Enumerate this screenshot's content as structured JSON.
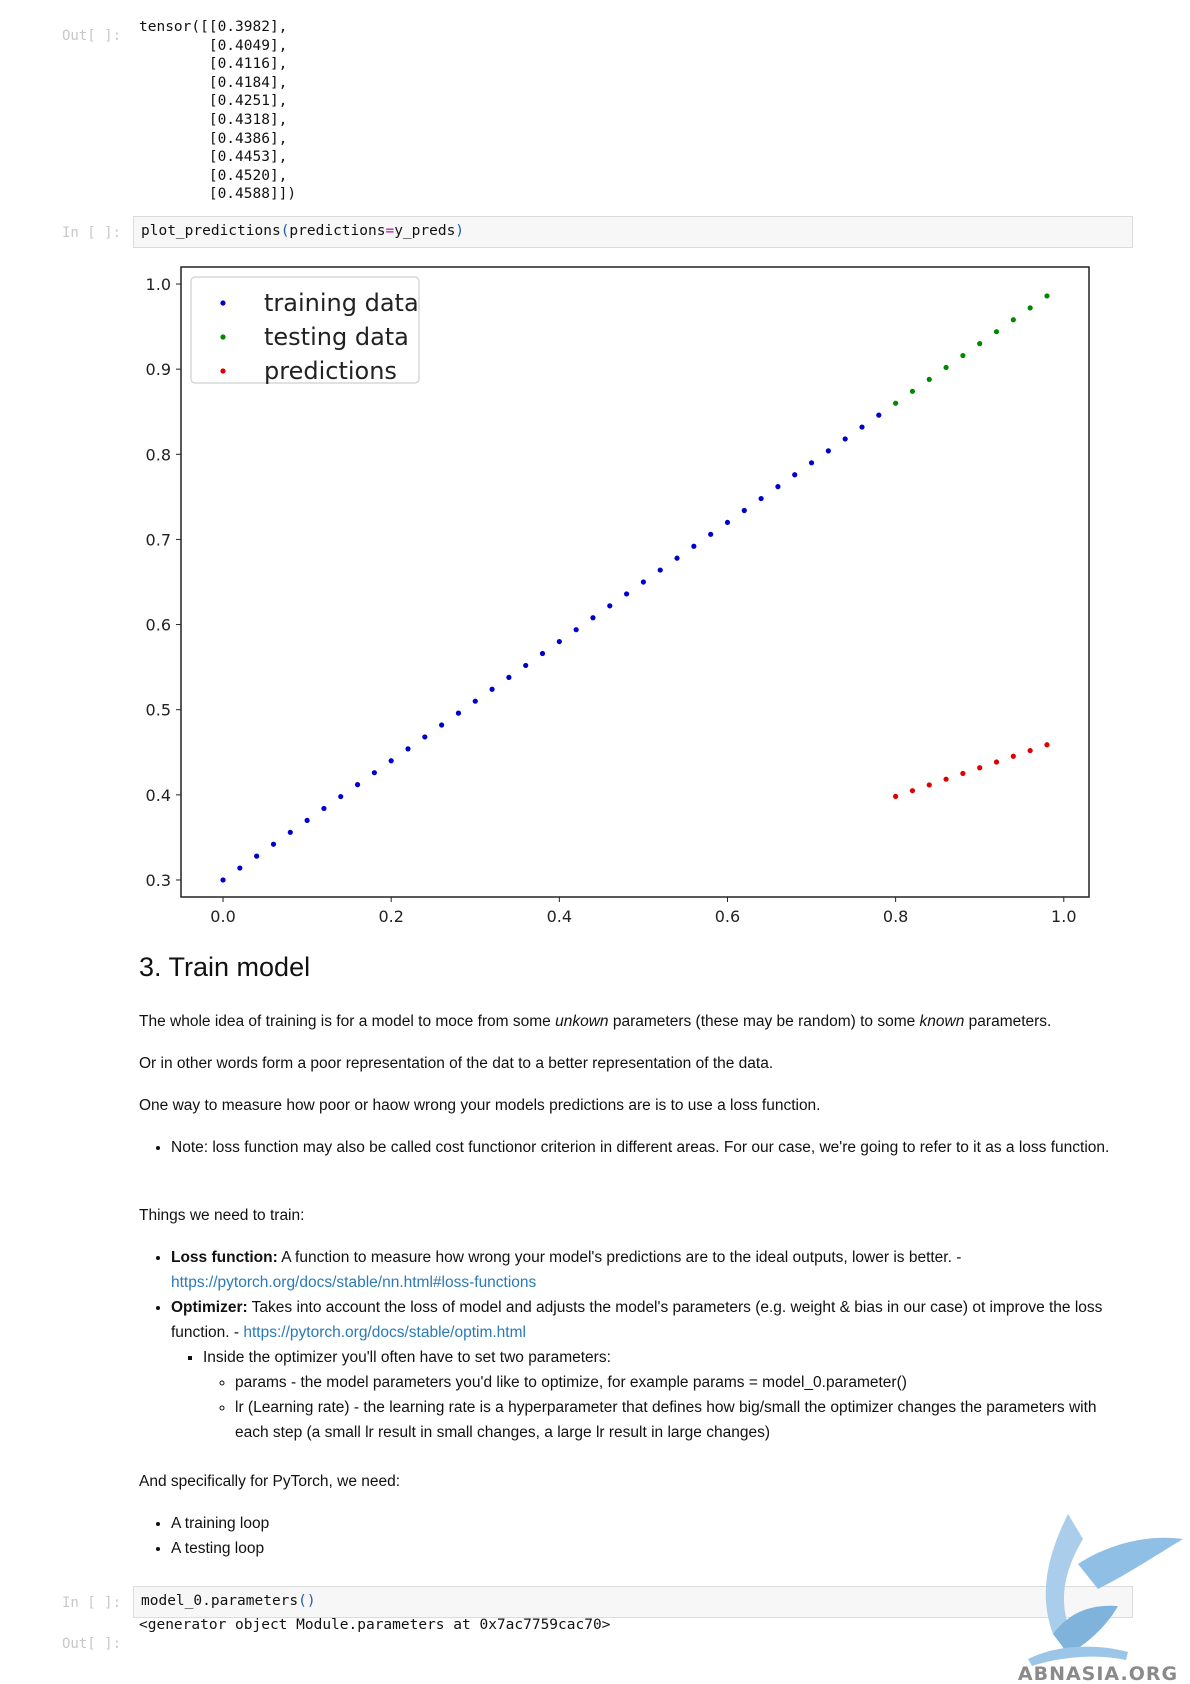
{
  "cells": {
    "out1_prompt": "Out[ ]:",
    "out1_lines": [
      "tensor([[0.3982],",
      "        [0.4049],",
      "        [0.4116],",
      "        [0.4184],",
      "        [0.4251],",
      "        [0.4318],",
      "        [0.4386],",
      "        [0.4453],",
      "        [0.4520],",
      "        [0.4588]])"
    ],
    "in1_prompt": "In [ ]:",
    "in1_code": {
      "fn": "plot_predictions",
      "open": "(",
      "arg": "predictions",
      "eq": "=",
      "val": "y_preds",
      "close": ")"
    },
    "in2_prompt": "In [ ]:",
    "in2_code": {
      "fn": "model_0.parameters",
      "parens": "()"
    },
    "out2_prompt": "Out[ ]:",
    "out2_text": "<generator object Module.parameters at 0x7ac7759cac70>"
  },
  "chart_data": {
    "type": "scatter",
    "xlim": [
      -0.05,
      1.03
    ],
    "ylim": [
      0.28,
      1.02
    ],
    "xticks": [
      "0.0",
      "0.2",
      "0.4",
      "0.6",
      "0.8",
      "1.0"
    ],
    "yticks": [
      "0.3",
      "0.4",
      "0.5",
      "0.6",
      "0.7",
      "0.8",
      "0.9",
      "1.0"
    ],
    "legend_position": "top-left",
    "grid": false,
    "series": [
      {
        "name": "training data",
        "color": "#0000cc",
        "x": [
          0.0,
          0.02,
          0.04,
          0.06,
          0.08,
          0.1,
          0.12,
          0.14,
          0.16,
          0.18,
          0.2,
          0.22,
          0.24,
          0.26,
          0.28,
          0.3,
          0.32,
          0.34,
          0.36,
          0.38,
          0.4,
          0.42,
          0.44,
          0.46,
          0.48,
          0.5,
          0.52,
          0.54,
          0.56,
          0.58,
          0.6,
          0.62,
          0.64,
          0.66,
          0.68,
          0.7,
          0.72,
          0.74,
          0.76,
          0.78
        ],
        "y": [
          0.3,
          0.314,
          0.328,
          0.342,
          0.356,
          0.37,
          0.384,
          0.398,
          0.412,
          0.426,
          0.44,
          0.454,
          0.468,
          0.482,
          0.496,
          0.51,
          0.524,
          0.538,
          0.552,
          0.566,
          0.58,
          0.594,
          0.608,
          0.622,
          0.636,
          0.65,
          0.664,
          0.678,
          0.692,
          0.706,
          0.72,
          0.734,
          0.748,
          0.762,
          0.776,
          0.79,
          0.804,
          0.818,
          0.832,
          0.846
        ]
      },
      {
        "name": "testing data",
        "color": "#008800",
        "x": [
          0.8,
          0.82,
          0.84,
          0.86,
          0.88,
          0.9,
          0.92,
          0.94,
          0.96,
          0.98
        ],
        "y": [
          0.86,
          0.874,
          0.888,
          0.902,
          0.916,
          0.93,
          0.944,
          0.958,
          0.972,
          0.986
        ]
      },
      {
        "name": "predictions",
        "color": "#dd0000",
        "x": [
          0.8,
          0.82,
          0.84,
          0.86,
          0.88,
          0.9,
          0.92,
          0.94,
          0.96,
          0.98
        ],
        "y": [
          0.3982,
          0.4049,
          0.4116,
          0.4184,
          0.4251,
          0.4318,
          0.4386,
          0.4453,
          0.452,
          0.4588
        ]
      }
    ]
  },
  "markdown": {
    "heading": "3. Train model",
    "p1": {
      "a": "The whole idea of training is for a model to moce from some ",
      "b": "unkown",
      "c": " parameters (these may be random) to some ",
      "d": "known",
      "e": " parameters."
    },
    "p2": "Or in other words form a poor representation of the dat to a better representation of the data.",
    "p3": "One way to measure how poor or haow wrong your models predictions are is to use a loss function.",
    "note": "Note: loss function may also be called cost functionor criterion in different areas. For our case, we're going to refer to it as a loss function.",
    "p4": "Things we need to train:",
    "loss": {
      "label": "Loss function:",
      "text": " A function to measure how wrong your model's predictions are to the ideal outputs, lower is better. - ",
      "link": "https://pytorch.org/docs/stable/nn.html#loss-functions"
    },
    "optim": {
      "label": "Optimizer:",
      "text": " Takes into account the loss of model and adjusts the model's parameters (e.g. weight & bias in our case) ot improve the loss function. - ",
      "link": "https://pytorch.org/docs/stable/optim.html"
    },
    "inside": "Inside the optimizer you'll often have to set two parameters:",
    "params": "params - the model parameters you'd like to optimize, for example params = model_0.parameter()",
    "lr": "lr (Learning rate) - the learning rate is a hyperparameter that defines how big/small the optimizer changes the parameters with each step (a small lr result in small changes, a large lr result in large changes)",
    "p5": "And specifically for PyTorch, we need:",
    "loops": [
      "A training loop",
      "A testing loop"
    ]
  },
  "watermark": {
    "text": "ABNASIA.ORG"
  }
}
